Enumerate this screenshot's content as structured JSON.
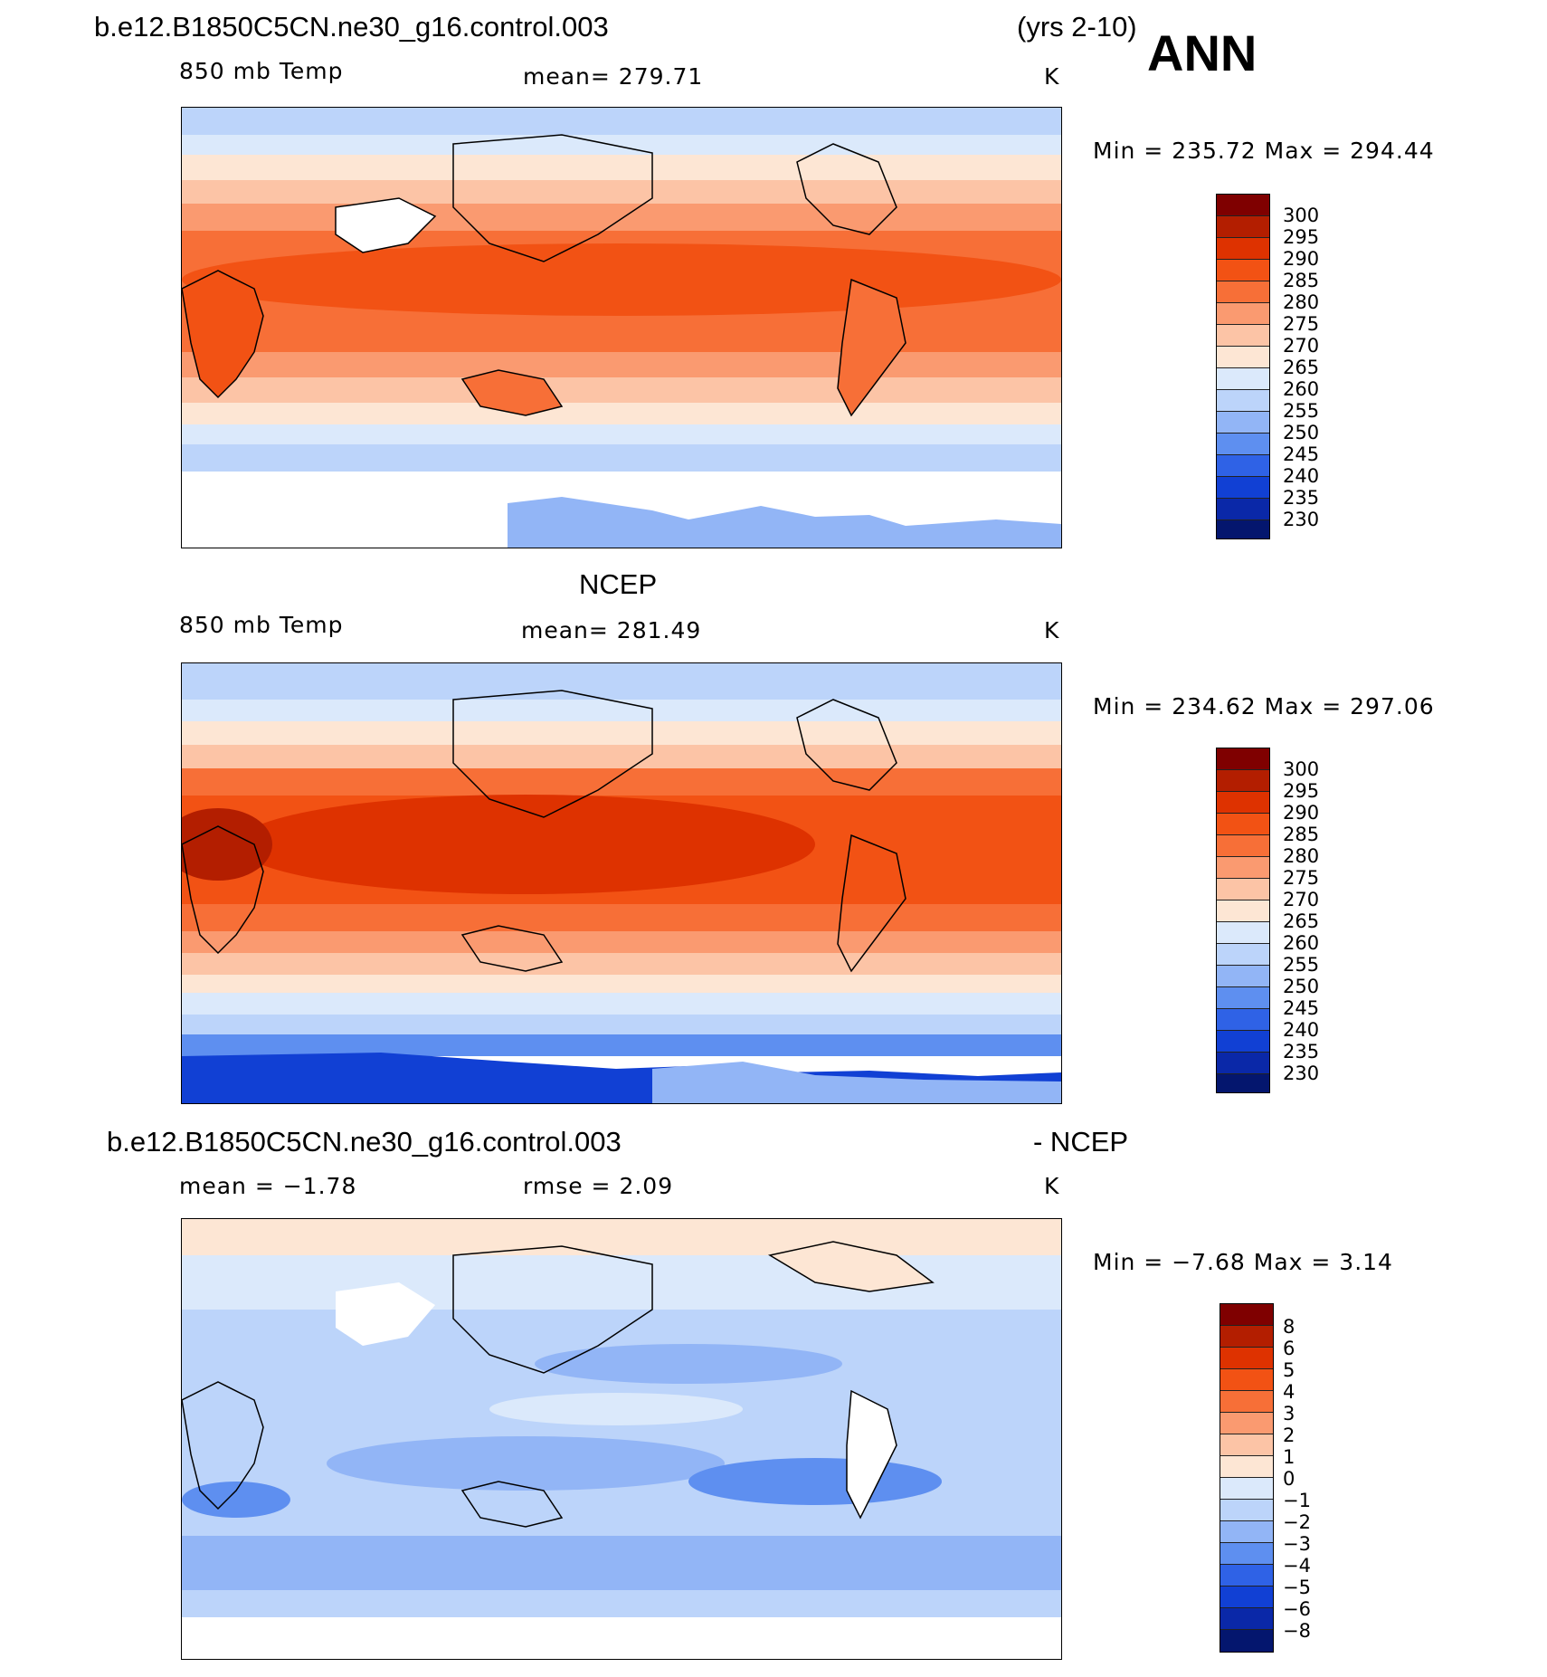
{
  "header": {
    "case_name": "b.e12.B1850C5CN.ne30_g16.control.003",
    "years": "(yrs 2-10)",
    "season": "ANN"
  },
  "panels": [
    {
      "title": "",
      "variable": "850 mb Temp",
      "stat1": "mean= 279.71",
      "stat2": "",
      "units": "K",
      "minmax": "Min = 235.72 Max = 294.44",
      "colorbar_labels": [
        "300",
        "295",
        "290",
        "285",
        "280",
        "275",
        "270",
        "265",
        "260",
        "255",
        "250",
        "245",
        "240",
        "235",
        "230"
      ]
    },
    {
      "title": "NCEP",
      "variable": "850 mb Temp",
      "stat1": "mean= 281.49",
      "stat2": "",
      "units": "K",
      "minmax": "Min = 234.62 Max = 297.06",
      "colorbar_labels": [
        "300",
        "295",
        "290",
        "285",
        "280",
        "275",
        "270",
        "265",
        "260",
        "255",
        "250",
        "245",
        "240",
        "235",
        "230"
      ]
    },
    {
      "title": "b.e12.B1850C5CN.ne30_g16.control.003",
      "title_right": "- NCEP",
      "variable": "",
      "stat1": "mean = −1.78",
      "stat2": "rmse = 2.09",
      "units": "K",
      "minmax": "Min = −7.68 Max = 3.14",
      "colorbar_labels": [
        "8",
        "6",
        "5",
        "4",
        "3",
        "2",
        "1",
        "0",
        "−1",
        "−2",
        "−3",
        "−4",
        "−5",
        "−6",
        "−8"
      ]
    }
  ],
  "colors": {
    "abs_scale": [
      "#7f0000",
      "#b31e00",
      "#de3200",
      "#f25214",
      "#f76f37",
      "#fa9a70",
      "#fcc4a6",
      "#fde6d4",
      "#dbe9fb",
      "#bcd4fa",
      "#92b5f6",
      "#5e8ff0",
      "#2f62e6",
      "#1140d4",
      "#0a28a8",
      "#04166e"
    ],
    "diff_scale": [
      "#7f0000",
      "#b31e00",
      "#de3200",
      "#f25214",
      "#f76f37",
      "#fa9a70",
      "#fcc4a6",
      "#fde6d4",
      "#dbe9fb",
      "#bcd4fa",
      "#92b5f6",
      "#5e8ff0",
      "#2f62e6",
      "#1140d4",
      "#0a28a8",
      "#04166e"
    ]
  }
}
